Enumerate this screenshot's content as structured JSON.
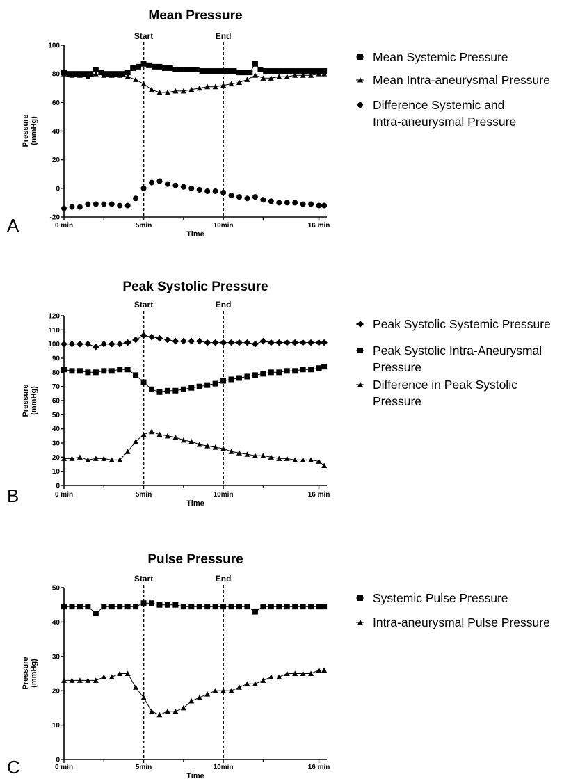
{
  "chart_data": [
    {
      "type": "line",
      "panel": "A",
      "title": "Mean Pressure",
      "xlabel": "Time",
      "ylabel": "Pressure (mmHg)",
      "ylabel_lines": [
        "Pressure",
        "(mmHg)"
      ],
      "xlim": [
        0,
        16.5
      ],
      "ylim": [
        -20,
        100
      ],
      "yticks": [
        -20,
        0,
        20,
        40,
        60,
        80,
        100
      ],
      "xticks": [
        {
          "v": 0,
          "label": "0 min"
        },
        {
          "v": 5,
          "label": "5min"
        },
        {
          "v": 10,
          "label": "10min"
        },
        {
          "v": 16,
          "label": "16 min"
        }
      ],
      "xminor": [
        2.5,
        7.5,
        12.5
      ],
      "markers": [
        {
          "x": 5,
          "label": "Start"
        },
        {
          "x": 10,
          "label": "End"
        }
      ],
      "legend_position": "right",
      "series": [
        {
          "name": "Mean Systemic Pressure",
          "marker": "square",
          "line": true,
          "x": [
            0,
            0.33,
            0.67,
            1,
            1.33,
            1.67,
            2,
            2.33,
            2.67,
            3,
            3.33,
            3.67,
            4,
            4.33,
            4.67,
            5,
            5.33,
            5.67,
            6,
            6.33,
            6.67,
            7,
            7.33,
            7.67,
            8,
            8.33,
            8.67,
            9,
            9.33,
            9.67,
            10,
            10.33,
            10.67,
            11,
            11.33,
            11.67,
            12,
            12.33,
            12.67,
            13,
            13.33,
            13.67,
            14,
            14.33,
            14.67,
            15,
            15.33,
            15.67,
            16,
            16.33
          ],
          "y": [
            81,
            80,
            80,
            80,
            80,
            80,
            83,
            81,
            80,
            80,
            80,
            80,
            81,
            84,
            85,
            87,
            86,
            85,
            85,
            84,
            84,
            83,
            83,
            83,
            83,
            83,
            82,
            82,
            82,
            82,
            82,
            82,
            82,
            81,
            81,
            81,
            87,
            83,
            82,
            82,
            82,
            82,
            82,
            82,
            82,
            82,
            82,
            82,
            82,
            82
          ]
        },
        {
          "name": "Mean Intra-aneurysmal Pressure",
          "marker": "triangle",
          "line": true,
          "x": [
            0,
            0.5,
            1,
            1.5,
            2,
            2.5,
            3,
            3.5,
            4,
            4.5,
            5,
            5.5,
            6,
            6.5,
            7,
            7.5,
            8,
            8.5,
            9,
            9.5,
            10,
            10.5,
            11,
            11.5,
            12,
            12.5,
            13,
            13.5,
            14,
            14.5,
            15,
            15.5,
            16,
            16.33
          ],
          "y": [
            80,
            79,
            79,
            78,
            80,
            79,
            79,
            79,
            78,
            76,
            73,
            69,
            67,
            67,
            68,
            68,
            69,
            70,
            71,
            71,
            72,
            73,
            74,
            76,
            79,
            77,
            77,
            78,
            78,
            79,
            79,
            79,
            80,
            80
          ]
        },
        {
          "name": "Difference Systemic and Intra-aneurysmal Pressure",
          "marker": "circle",
          "line": false,
          "x": [
            0,
            0.5,
            1,
            1.5,
            2,
            2.5,
            3,
            3.5,
            4,
            4.5,
            5,
            5.5,
            6,
            6.5,
            7,
            7.5,
            8,
            8.5,
            9,
            9.5,
            10,
            10.5,
            11,
            11.5,
            12,
            12.5,
            13,
            13.5,
            14,
            14.5,
            15,
            15.5,
            16,
            16.33
          ],
          "y": [
            -14,
            -13,
            -13,
            -11,
            -11,
            -11,
            -11,
            -12,
            -12,
            -7,
            0,
            4,
            5,
            3,
            2,
            1,
            0,
            -1,
            -2,
            -2,
            -3,
            -5,
            -6,
            -7,
            -6,
            -8,
            -9,
            -10,
            -10,
            -10,
            -11,
            -11,
            -12,
            -12
          ]
        }
      ]
    },
    {
      "type": "line",
      "panel": "B",
      "title": "Peak Systolic Pressure",
      "xlabel": "Time",
      "ylabel": "Pressure (mmHg)",
      "ylabel_lines": [
        "Pressure",
        "(mmHg)"
      ],
      "xlim": [
        0,
        16.5
      ],
      "ylim": [
        0,
        120
      ],
      "yticks": [
        0,
        10,
        20,
        30,
        40,
        50,
        60,
        70,
        80,
        90,
        100,
        110,
        120
      ],
      "xticks": [
        {
          "v": 0,
          "label": "0 min"
        },
        {
          "v": 5,
          "label": "5min"
        },
        {
          "v": 10,
          "label": "10min"
        },
        {
          "v": 16,
          "label": "16 min"
        }
      ],
      "xminor": [
        2.5,
        7.5,
        12.5
      ],
      "markers": [
        {
          "x": 5,
          "label": "Start"
        },
        {
          "x": 10,
          "label": "End"
        }
      ],
      "legend_position": "right",
      "series": [
        {
          "name": "Peak Systolic Systemic Pressure",
          "legend_lines": [
            "Peak Systolic Systemic Pressure"
          ],
          "marker": "diamond",
          "line": true,
          "x": [
            0,
            0.5,
            1,
            1.5,
            2,
            2.5,
            3,
            3.5,
            4,
            4.5,
            5,
            5.5,
            6,
            6.5,
            7,
            7.5,
            8,
            8.5,
            9,
            9.5,
            10,
            10.5,
            11,
            11.5,
            12,
            12.5,
            13,
            13.5,
            14,
            14.5,
            15,
            15.5,
            16,
            16.33
          ],
          "y": [
            100,
            100,
            100,
            100,
            98,
            100,
            100,
            100,
            101,
            103,
            106,
            105,
            104,
            103,
            102,
            102,
            102,
            102,
            101,
            101,
            101,
            101,
            101,
            101,
            100,
            102,
            101,
            101,
            101,
            101,
            101,
            101,
            101,
            101
          ]
        },
        {
          "name": "Peak Systolic Intra-Aneurysmal Pressure",
          "legend_lines": [
            "Peak Systolic Intra-Aneurysmal",
            "Pressure"
          ],
          "marker": "square",
          "line": true,
          "x": [
            0,
            0.5,
            1,
            1.5,
            2,
            2.5,
            3,
            3.5,
            4,
            4.5,
            5,
            5.5,
            6,
            6.5,
            7,
            7.5,
            8,
            8.5,
            9,
            9.5,
            10,
            10.5,
            11,
            11.5,
            12,
            12.5,
            13,
            13.5,
            14,
            14.5,
            15,
            15.5,
            16,
            16.33
          ],
          "y": [
            82,
            81,
            81,
            80,
            80,
            81,
            81,
            82,
            82,
            78,
            73,
            68,
            66,
            67,
            67,
            68,
            69,
            70,
            71,
            72,
            74,
            75,
            76,
            77,
            78,
            79,
            80,
            80,
            81,
            81,
            82,
            82,
            83,
            84
          ]
        },
        {
          "name": "Difference in Peak Systolic Pressure",
          "legend_lines": [
            "Difference in Peak Systolic",
            "Pressure"
          ],
          "marker": "triangle",
          "line": true,
          "x": [
            0,
            0.5,
            1,
            1.5,
            2,
            2.5,
            3,
            3.5,
            4,
            4.5,
            5,
            5.5,
            6,
            6.5,
            7,
            7.5,
            8,
            8.5,
            9,
            9.5,
            10,
            10.5,
            11,
            11.5,
            12,
            12.5,
            13,
            13.5,
            14,
            14.5,
            15,
            15.5,
            16,
            16.33
          ],
          "y": [
            19,
            19,
            20,
            18,
            19,
            19,
            18,
            18,
            24,
            31,
            36,
            38,
            36,
            35,
            34,
            32,
            31,
            29,
            28,
            27,
            26,
            24,
            23,
            22,
            21,
            21,
            20,
            19,
            19,
            18,
            18,
            18,
            17,
            14
          ]
        }
      ]
    },
    {
      "type": "line",
      "panel": "C",
      "title": "Pulse Pressure",
      "xlabel": "Time",
      "ylabel": "Pressure (mmHg)",
      "ylabel_lines": [
        "Pressure",
        "(mmHg)"
      ],
      "xlim": [
        0,
        16.5
      ],
      "ylim": [
        0,
        50
      ],
      "yticks": [
        0,
        10,
        20,
        30,
        40,
        50
      ],
      "xticks": [
        {
          "v": 0,
          "label": "0 min"
        },
        {
          "v": 5,
          "label": "5min"
        },
        {
          "v": 10,
          "label": "10min"
        },
        {
          "v": 16,
          "label": "16 min"
        }
      ],
      "xminor": [
        2.5,
        7.5,
        12.5
      ],
      "markers": [
        {
          "x": 5,
          "label": "Start"
        },
        {
          "x": 10,
          "label": "End"
        }
      ],
      "legend_position": "right",
      "series": [
        {
          "name": "Systemic Pulse Pressure",
          "marker": "square",
          "line": true,
          "x": [
            0,
            0.5,
            1,
            1.5,
            2,
            2.5,
            3,
            3.5,
            4,
            4.5,
            5,
            5.5,
            6,
            6.5,
            7,
            7.5,
            8,
            8.5,
            9,
            9.5,
            10,
            10.5,
            11,
            11.5,
            12,
            12.5,
            13,
            13.5,
            14,
            14.5,
            15,
            15.5,
            16,
            16.33
          ],
          "y": [
            44.5,
            44.5,
            44.5,
            44.5,
            42.5,
            44.5,
            44.5,
            44.5,
            44.5,
            44.5,
            45.5,
            45.5,
            45,
            45,
            45,
            44.5,
            44.5,
            44.5,
            44.5,
            44.5,
            44.5,
            44.5,
            44.5,
            44.5,
            43,
            44.5,
            44.5,
            44.5,
            44.5,
            44.5,
            44.5,
            44.5,
            44.5,
            44.5
          ]
        },
        {
          "name": "Intra-aneurysmal Pulse Pressure",
          "marker": "triangle",
          "line": true,
          "x": [
            0,
            0.5,
            1,
            1.5,
            2,
            2.5,
            3,
            3.5,
            4,
            4.5,
            5,
            5.5,
            6,
            6.5,
            7,
            7.5,
            8,
            8.5,
            9,
            9.5,
            10,
            10.5,
            11,
            11.5,
            12,
            12.5,
            13,
            13.5,
            14,
            14.5,
            15,
            15.5,
            16,
            16.33
          ],
          "y": [
            23,
            23,
            23,
            23,
            23,
            24,
            24,
            25,
            25,
            21,
            18,
            14,
            13,
            14,
            14,
            15,
            17,
            18,
            19,
            20,
            20,
            20,
            21,
            22,
            22,
            23,
            24,
            24,
            25,
            25,
            25,
            25,
            26,
            26
          ]
        }
      ]
    }
  ]
}
